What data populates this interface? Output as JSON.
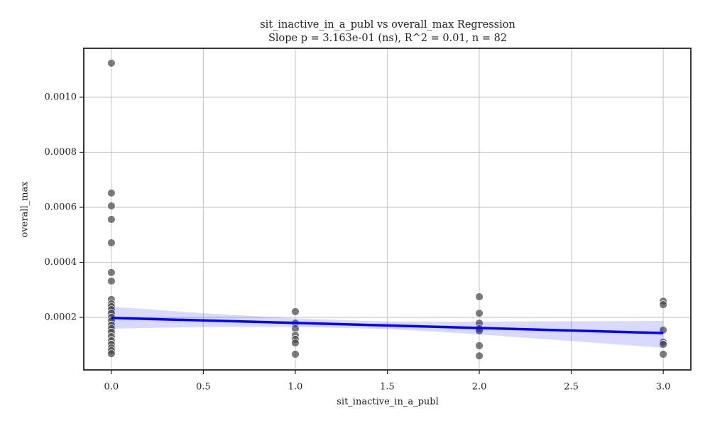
{
  "chart_data": {
    "type": "scatter",
    "title": "sit_inactive_in_a_publ vs overall_max Regression",
    "subtitle": "Slope p = 3.163e-01 (ns), R^2 = 0.01, n = 82",
    "x_label": "sit_inactive_in_a_publ",
    "y_label": "overall_max",
    "xlim": [
      -0.15,
      3.15
    ],
    "ylim": [
      9e-06,
      0.001178
    ],
    "xticks": [
      {
        "value": 0,
        "label": "0.0"
      },
      {
        "value": 0.5,
        "label": "0.5"
      },
      {
        "value": 1,
        "label": "1.0"
      },
      {
        "value": 1.5,
        "label": "1.5"
      },
      {
        "value": 2,
        "label": "2.0"
      },
      {
        "value": 2.5,
        "label": "2.5"
      },
      {
        "value": 3,
        "label": "3.0"
      }
    ],
    "yticks": [
      0.0002,
      0.0004,
      0.0006,
      0.0008,
      {
        "value": 0.001,
        "label": "0.0010"
      }
    ],
    "grid": true,
    "series": [
      {
        "color": "#444444",
        "x": [
          0,
          0,
          0,
          0,
          0,
          0,
          0,
          0,
          0,
          0,
          0,
          0,
          0,
          0,
          0,
          0,
          0,
          0,
          0,
          0,
          0,
          0,
          0,
          1,
          1,
          1,
          1,
          1,
          1,
          1,
          2,
          2,
          2,
          2,
          2,
          2,
          2,
          3,
          3,
          3,
          3,
          3,
          3
        ],
        "values": [
          0.001124,
          0.000652,
          0.000605,
          0.000556,
          0.000471,
          0.000363,
          0.000332,
          0.000265,
          0.000249,
          0.000239,
          0.000228,
          0.000215,
          0.0002,
          0.000187,
          0.000172,
          0.000159,
          0.000146,
          0.00013,
          0.000115,
          0.000102,
          8.9e-05,
          7.9e-05,
          6.8e-05,
          0.000221,
          0.000179,
          0.000159,
          0.000135,
          0.00012,
          0.000107,
          6.6e-05,
          0.000275,
          0.000215,
          0.000179,
          0.000159,
          0.000151,
          9.7e-05,
          6e-05,
          0.000259,
          0.000246,
          0.000154,
          0.00011,
          0.000102,
          6.6e-05
        ]
      }
    ],
    "regression": {
      "color": "#0000ff",
      "x": [
        0,
        3
      ],
      "y": [
        0.000198,
        0.000143
      ]
    },
    "band": {
      "color": "#0000ff",
      "x": [
        0,
        0.5,
        1,
        1.5,
        2,
        2.5,
        3
      ],
      "upper": [
        0.000239,
        0.000215,
        0.000196,
        0.000185,
        0.000184,
        0.000186,
        0.000187
      ],
      "lower": [
        0.000159,
        0.000165,
        0.000165,
        0.000158,
        0.000138,
        0.000114,
        8.9e-05
      ]
    }
  }
}
